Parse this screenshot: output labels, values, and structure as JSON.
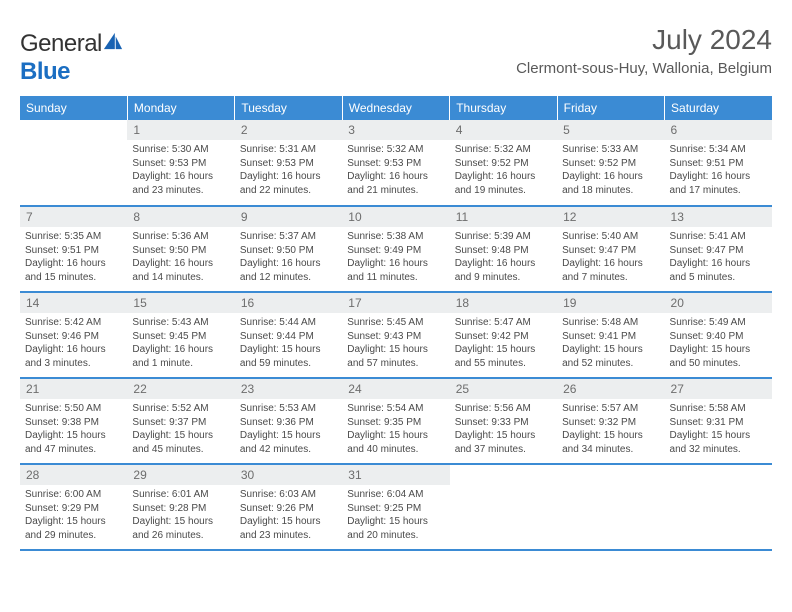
{
  "brand": {
    "part1": "General",
    "part2": "Blue"
  },
  "title": {
    "month_year": "July 2024",
    "location": "Clermont-sous-Huy, Wallonia, Belgium"
  },
  "colors": {
    "header_bg": "#3b8bd4",
    "header_fg": "#ffffff",
    "daynum_bg": "#eceeef",
    "text": "#4a4a4a"
  },
  "weekdays": [
    "Sunday",
    "Monday",
    "Tuesday",
    "Wednesday",
    "Thursday",
    "Friday",
    "Saturday"
  ],
  "weeks": [
    [
      {
        "n": "",
        "sunrise": "",
        "sunset": "",
        "daylight": "",
        "empty": true
      },
      {
        "n": "1",
        "sunrise": "Sunrise: 5:30 AM",
        "sunset": "Sunset: 9:53 PM",
        "daylight": "Daylight: 16 hours and 23 minutes."
      },
      {
        "n": "2",
        "sunrise": "Sunrise: 5:31 AM",
        "sunset": "Sunset: 9:53 PM",
        "daylight": "Daylight: 16 hours and 22 minutes."
      },
      {
        "n": "3",
        "sunrise": "Sunrise: 5:32 AM",
        "sunset": "Sunset: 9:53 PM",
        "daylight": "Daylight: 16 hours and 21 minutes."
      },
      {
        "n": "4",
        "sunrise": "Sunrise: 5:32 AM",
        "sunset": "Sunset: 9:52 PM",
        "daylight": "Daylight: 16 hours and 19 minutes."
      },
      {
        "n": "5",
        "sunrise": "Sunrise: 5:33 AM",
        "sunset": "Sunset: 9:52 PM",
        "daylight": "Daylight: 16 hours and 18 minutes."
      },
      {
        "n": "6",
        "sunrise": "Sunrise: 5:34 AM",
        "sunset": "Sunset: 9:51 PM",
        "daylight": "Daylight: 16 hours and 17 minutes."
      }
    ],
    [
      {
        "n": "7",
        "sunrise": "Sunrise: 5:35 AM",
        "sunset": "Sunset: 9:51 PM",
        "daylight": "Daylight: 16 hours and 15 minutes."
      },
      {
        "n": "8",
        "sunrise": "Sunrise: 5:36 AM",
        "sunset": "Sunset: 9:50 PM",
        "daylight": "Daylight: 16 hours and 14 minutes."
      },
      {
        "n": "9",
        "sunrise": "Sunrise: 5:37 AM",
        "sunset": "Sunset: 9:50 PM",
        "daylight": "Daylight: 16 hours and 12 minutes."
      },
      {
        "n": "10",
        "sunrise": "Sunrise: 5:38 AM",
        "sunset": "Sunset: 9:49 PM",
        "daylight": "Daylight: 16 hours and 11 minutes."
      },
      {
        "n": "11",
        "sunrise": "Sunrise: 5:39 AM",
        "sunset": "Sunset: 9:48 PM",
        "daylight": "Daylight: 16 hours and 9 minutes."
      },
      {
        "n": "12",
        "sunrise": "Sunrise: 5:40 AM",
        "sunset": "Sunset: 9:47 PM",
        "daylight": "Daylight: 16 hours and 7 minutes."
      },
      {
        "n": "13",
        "sunrise": "Sunrise: 5:41 AM",
        "sunset": "Sunset: 9:47 PM",
        "daylight": "Daylight: 16 hours and 5 minutes."
      }
    ],
    [
      {
        "n": "14",
        "sunrise": "Sunrise: 5:42 AM",
        "sunset": "Sunset: 9:46 PM",
        "daylight": "Daylight: 16 hours and 3 minutes."
      },
      {
        "n": "15",
        "sunrise": "Sunrise: 5:43 AM",
        "sunset": "Sunset: 9:45 PM",
        "daylight": "Daylight: 16 hours and 1 minute."
      },
      {
        "n": "16",
        "sunrise": "Sunrise: 5:44 AM",
        "sunset": "Sunset: 9:44 PM",
        "daylight": "Daylight: 15 hours and 59 minutes."
      },
      {
        "n": "17",
        "sunrise": "Sunrise: 5:45 AM",
        "sunset": "Sunset: 9:43 PM",
        "daylight": "Daylight: 15 hours and 57 minutes."
      },
      {
        "n": "18",
        "sunrise": "Sunrise: 5:47 AM",
        "sunset": "Sunset: 9:42 PM",
        "daylight": "Daylight: 15 hours and 55 minutes."
      },
      {
        "n": "19",
        "sunrise": "Sunrise: 5:48 AM",
        "sunset": "Sunset: 9:41 PM",
        "daylight": "Daylight: 15 hours and 52 minutes."
      },
      {
        "n": "20",
        "sunrise": "Sunrise: 5:49 AM",
        "sunset": "Sunset: 9:40 PM",
        "daylight": "Daylight: 15 hours and 50 minutes."
      }
    ],
    [
      {
        "n": "21",
        "sunrise": "Sunrise: 5:50 AM",
        "sunset": "Sunset: 9:38 PM",
        "daylight": "Daylight: 15 hours and 47 minutes."
      },
      {
        "n": "22",
        "sunrise": "Sunrise: 5:52 AM",
        "sunset": "Sunset: 9:37 PM",
        "daylight": "Daylight: 15 hours and 45 minutes."
      },
      {
        "n": "23",
        "sunrise": "Sunrise: 5:53 AM",
        "sunset": "Sunset: 9:36 PM",
        "daylight": "Daylight: 15 hours and 42 minutes."
      },
      {
        "n": "24",
        "sunrise": "Sunrise: 5:54 AM",
        "sunset": "Sunset: 9:35 PM",
        "daylight": "Daylight: 15 hours and 40 minutes."
      },
      {
        "n": "25",
        "sunrise": "Sunrise: 5:56 AM",
        "sunset": "Sunset: 9:33 PM",
        "daylight": "Daylight: 15 hours and 37 minutes."
      },
      {
        "n": "26",
        "sunrise": "Sunrise: 5:57 AM",
        "sunset": "Sunset: 9:32 PM",
        "daylight": "Daylight: 15 hours and 34 minutes."
      },
      {
        "n": "27",
        "sunrise": "Sunrise: 5:58 AM",
        "sunset": "Sunset: 9:31 PM",
        "daylight": "Daylight: 15 hours and 32 minutes."
      }
    ],
    [
      {
        "n": "28",
        "sunrise": "Sunrise: 6:00 AM",
        "sunset": "Sunset: 9:29 PM",
        "daylight": "Daylight: 15 hours and 29 minutes."
      },
      {
        "n": "29",
        "sunrise": "Sunrise: 6:01 AM",
        "sunset": "Sunset: 9:28 PM",
        "daylight": "Daylight: 15 hours and 26 minutes."
      },
      {
        "n": "30",
        "sunrise": "Sunrise: 6:03 AM",
        "sunset": "Sunset: 9:26 PM",
        "daylight": "Daylight: 15 hours and 23 minutes."
      },
      {
        "n": "31",
        "sunrise": "Sunrise: 6:04 AM",
        "sunset": "Sunset: 9:25 PM",
        "daylight": "Daylight: 15 hours and 20 minutes."
      },
      {
        "n": "",
        "sunrise": "",
        "sunset": "",
        "daylight": "",
        "empty": true
      },
      {
        "n": "",
        "sunrise": "",
        "sunset": "",
        "daylight": "",
        "empty": true
      },
      {
        "n": "",
        "sunrise": "",
        "sunset": "",
        "daylight": "",
        "empty": true
      }
    ]
  ]
}
